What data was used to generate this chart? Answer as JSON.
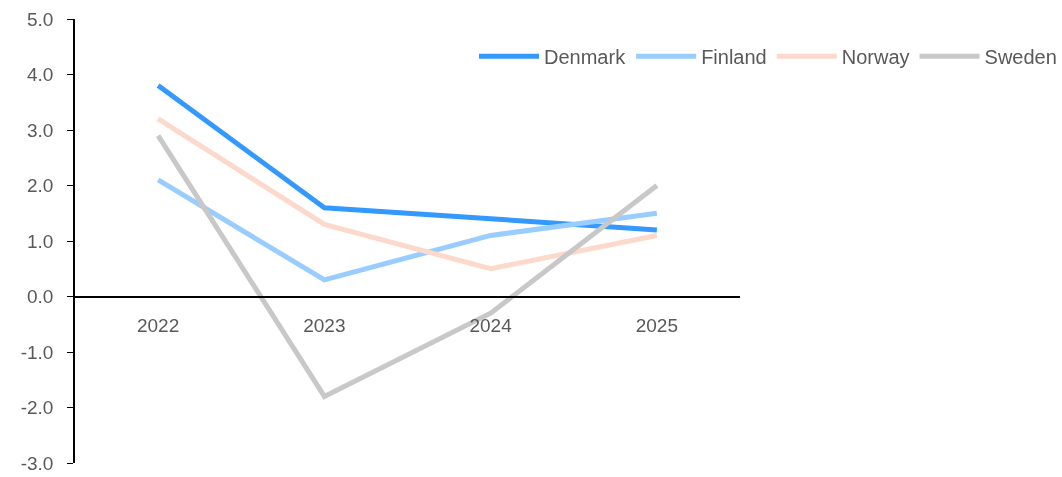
{
  "chart_data": {
    "type": "line",
    "categories": [
      "2022",
      "2023",
      "2024",
      "2025"
    ],
    "series": [
      {
        "name": "Denmark",
        "color": "#3399ff",
        "values": [
          3.8,
          1.6,
          1.4,
          1.2
        ]
      },
      {
        "name": "Finland",
        "color": "#99ccff",
        "values": [
          2.1,
          0.3,
          1.1,
          1.5
        ]
      },
      {
        "name": "Norway",
        "color": "#fcd9cb",
        "values": [
          3.2,
          1.3,
          0.5,
          1.1
        ]
      },
      {
        "name": "Sweden",
        "color": "#c8c8c8",
        "values": [
          2.9,
          -1.8,
          -0.3,
          2.0
        ]
      }
    ],
    "ylim": [
      -3,
      5
    ],
    "yticks": [
      {
        "value": -3,
        "label": "-3.0"
      },
      {
        "value": -2,
        "label": "-2.0"
      },
      {
        "value": -1,
        "label": "-1.0"
      },
      {
        "value": 0,
        "label": "0.0"
      },
      {
        "value": 1,
        "label": "1.0"
      },
      {
        "value": 2,
        "label": "2.0"
      },
      {
        "value": 3,
        "label": "3.0"
      },
      {
        "value": 4,
        "label": "4.0"
      },
      {
        "value": 5,
        "label": "5.0"
      }
    ],
    "grid": false,
    "legend": "top right",
    "marker": "none",
    "line_style": "solid"
  }
}
